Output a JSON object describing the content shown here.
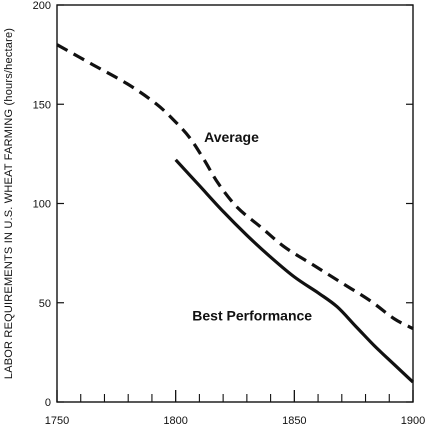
{
  "chart_data": {
    "type": "line",
    "title": "",
    "xlabel": "",
    "ylabel": "LABOR REQUIREMENTS IN U.S. WHEAT FARMING  (hours/hectare)",
    "xlim": [
      1750,
      1900
    ],
    "ylim": [
      0,
      200
    ],
    "x_ticks": [
      1750,
      1800,
      1850,
      1900
    ],
    "y_ticks": [
      0,
      50,
      100,
      150,
      200
    ],
    "x_tick_labels": [
      "1750",
      "1800",
      "1850",
      "1900"
    ],
    "y_tick_labels": [
      "0",
      "50",
      "100",
      "150",
      "200"
    ],
    "grid": false,
    "legend": "none",
    "series": [
      {
        "name": "Average",
        "style": "dashed",
        "color": "#111111",
        "x": [
          1750,
          1765,
          1780,
          1792,
          1800,
          1806,
          1812,
          1818,
          1826,
          1836,
          1846,
          1858,
          1870,
          1882,
          1892,
          1900
        ],
        "y": [
          180,
          170,
          160,
          150,
          141,
          133,
          122,
          110,
          98,
          88,
          78,
          69,
          60,
          51,
          42,
          37
        ]
      },
      {
        "name": "Best Performance",
        "style": "solid",
        "color": "#111111",
        "x": [
          1800,
          1810,
          1820,
          1830,
          1840,
          1850,
          1860,
          1868,
          1876,
          1884,
          1892,
          1900
        ],
        "y": [
          122,
          109,
          96,
          84,
          73,
          63,
          55,
          48,
          38,
          28,
          19,
          10
        ]
      }
    ]
  }
}
